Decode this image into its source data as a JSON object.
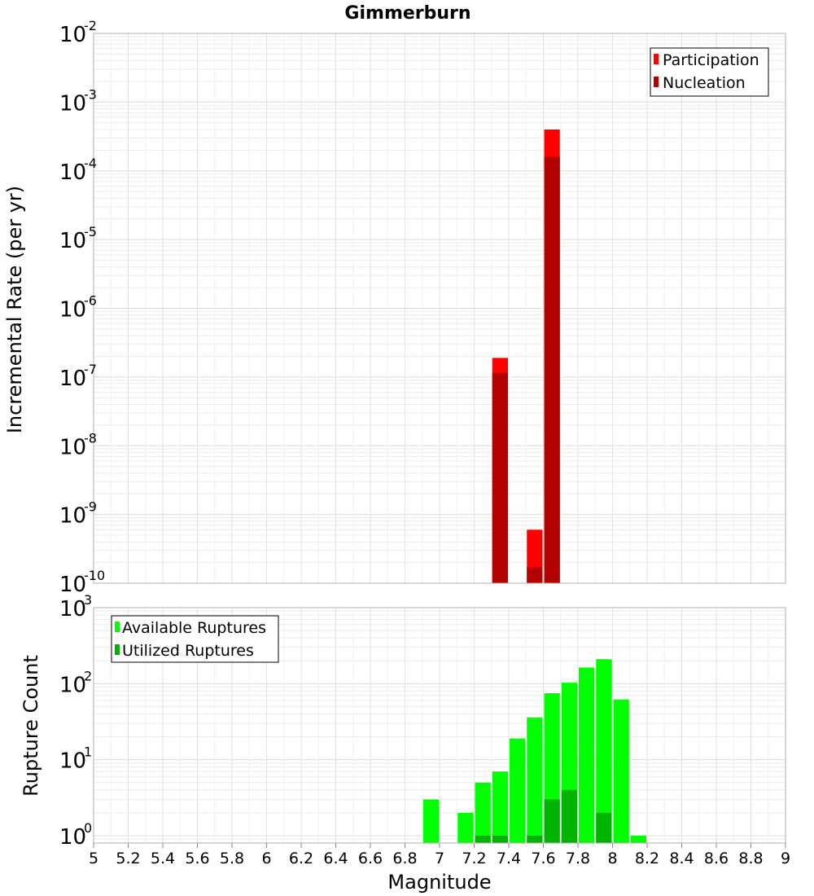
{
  "title": "Gimmerburn",
  "chart_data": [
    {
      "type": "bar",
      "panel": "top",
      "ylabel": "Incremental Rate (per yr)",
      "yscale": "log",
      "ylim": [
        1e-10,
        0.01
      ],
      "xlim": [
        5,
        9
      ],
      "bin_width": 0.1,
      "yticks": [
        {
          "base": "10",
          "exp": "-2",
          "value": 0.01
        },
        {
          "base": "10",
          "exp": "-3",
          "value": 0.001
        },
        {
          "base": "10",
          "exp": "-4",
          "value": 0.0001
        },
        {
          "base": "10",
          "exp": "-5",
          "value": 1e-05
        },
        {
          "base": "10",
          "exp": "-6",
          "value": 1e-06
        },
        {
          "base": "10",
          "exp": "-7",
          "value": 1e-07
        },
        {
          "base": "10",
          "exp": "-8",
          "value": 1e-08
        },
        {
          "base": "10",
          "exp": "-9",
          "value": 1e-09
        },
        {
          "base": "10",
          "exp": "-10",
          "value": 1e-10
        }
      ],
      "legend": {
        "position": "top-right"
      },
      "series": [
        {
          "name": "Participation",
          "color": "#ff0000",
          "x": [
            7.35,
            7.55,
            7.65
          ],
          "values": [
            1.9e-07,
            6e-10,
            0.0004
          ]
        },
        {
          "name": "Nucleation",
          "color": "#b30000",
          "x": [
            7.35,
            7.55,
            7.65
          ],
          "values": [
            1.15e-07,
            1.7e-10,
            0.00016
          ]
        }
      ]
    },
    {
      "type": "bar",
      "panel": "bottom",
      "xlabel": "Magnitude",
      "ylabel": "Rupture Count",
      "yscale": "log",
      "ylim": [
        0.8,
        1000
      ],
      "xlim": [
        5,
        9
      ],
      "bin_width": 0.1,
      "yticks": [
        {
          "base": "10",
          "exp": "3",
          "value": 1000
        },
        {
          "base": "10",
          "exp": "2",
          "value": 100
        },
        {
          "base": "10",
          "exp": "1",
          "value": 10
        },
        {
          "base": "10",
          "exp": "0",
          "value": 1
        }
      ],
      "xticks": [
        "5",
        "5.2",
        "5.4",
        "5.6",
        "5.8",
        "6",
        "6.2",
        "6.4",
        "6.6",
        "6.8",
        "7",
        "7.2",
        "7.4",
        "7.6",
        "7.8",
        "8",
        "8.2",
        "8.4",
        "8.6",
        "8.8",
        "9"
      ],
      "legend": {
        "position": "top-left"
      },
      "series": [
        {
          "name": "Available Ruptures",
          "color": "#00ff00",
          "x": [
            6.95,
            7.15,
            7.25,
            7.35,
            7.45,
            7.55,
            7.65,
            7.75,
            7.85,
            7.95,
            8.05,
            8.15
          ],
          "values": [
            3,
            2,
            5,
            7,
            19,
            36,
            75,
            103,
            163,
            210,
            62,
            1
          ]
        },
        {
          "name": "Utilized Ruptures",
          "color": "#00b300",
          "x": [
            7.25,
            7.35,
            7.55,
            7.65,
            7.75,
            7.95
          ],
          "values": [
            1,
            1,
            1,
            3,
            4,
            2
          ]
        }
      ]
    }
  ]
}
